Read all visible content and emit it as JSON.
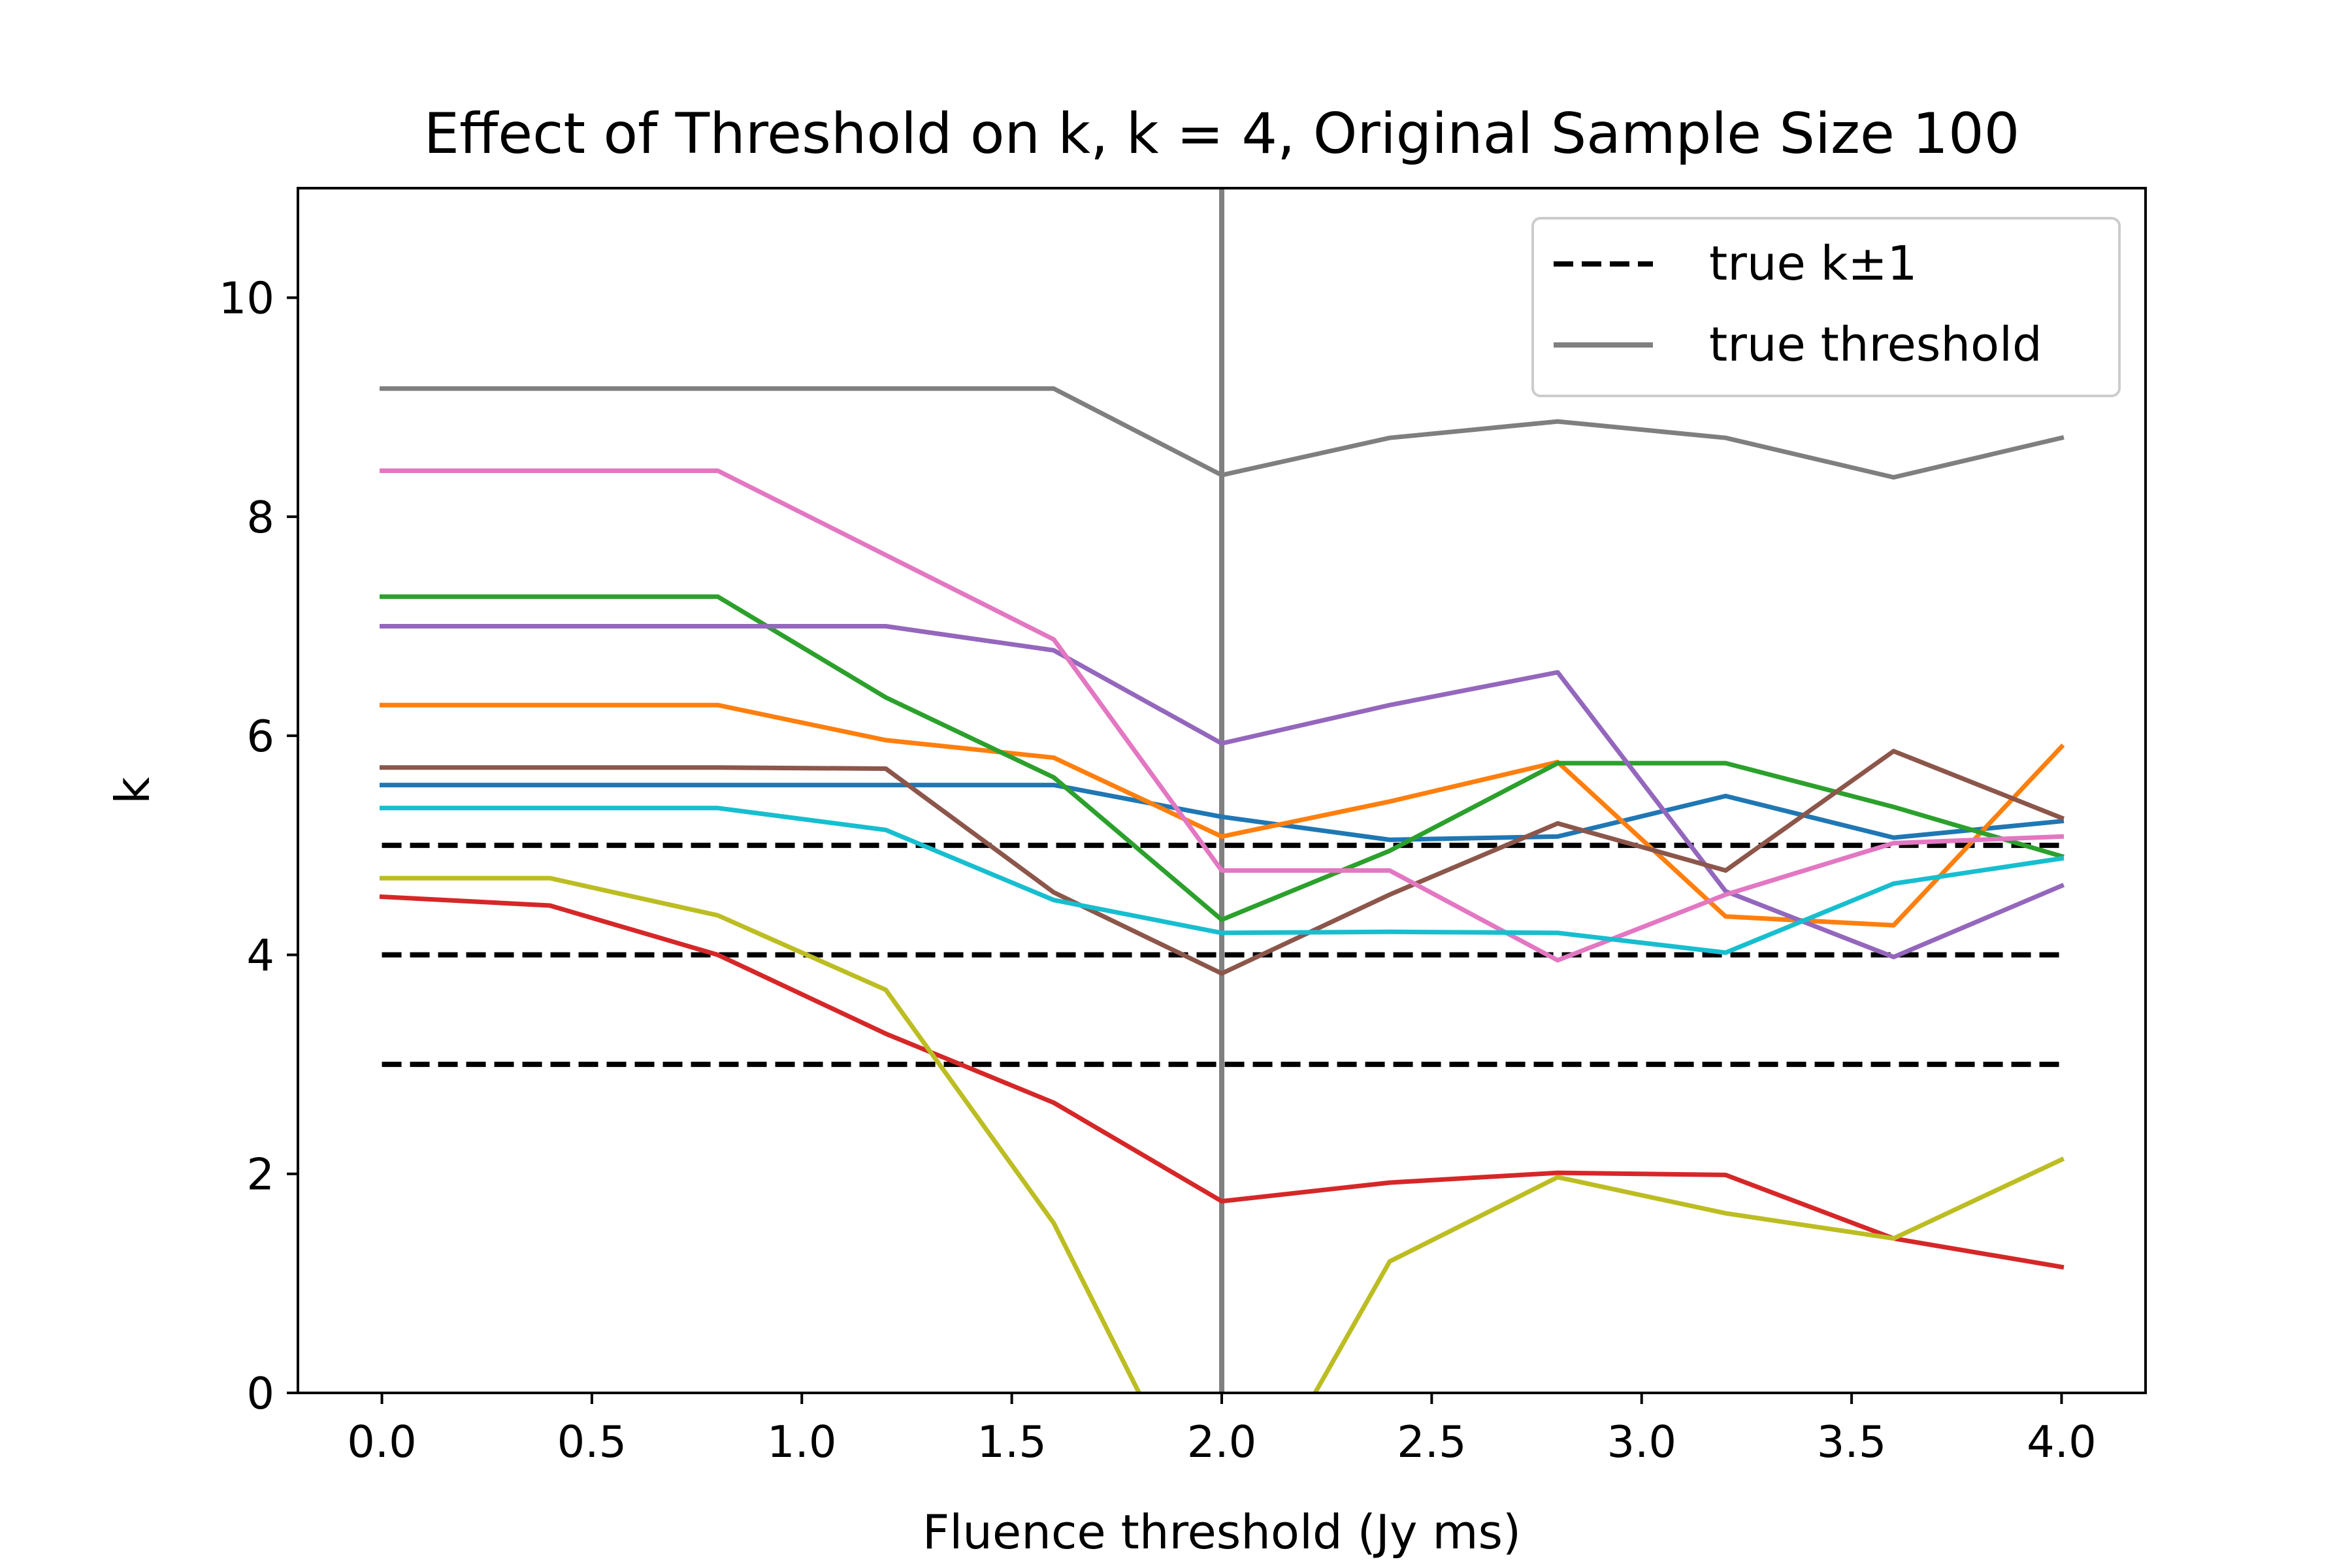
{
  "chart_data": {
    "type": "line",
    "title": "Effect of Threshold on k, k = 4, Original Sample Size 100",
    "xlabel": "Fluence threshold (Jy ms)",
    "ylabel": "k",
    "xlim": [
      -0.2,
      4.2
    ],
    "ylim": [
      0,
      11
    ],
    "xticks": [
      0.0,
      0.5,
      1.0,
      1.5,
      2.0,
      2.5,
      3.0,
      3.5,
      4.0
    ],
    "xtick_labels": [
      "0.0",
      "0.5",
      "1.0",
      "1.5",
      "2.0",
      "2.5",
      "3.0",
      "3.5",
      "4.0"
    ],
    "yticks": [
      0,
      2,
      4,
      6,
      8,
      10
    ],
    "ytick_labels": [
      "0",
      "2",
      "4",
      "6",
      "8",
      "10"
    ],
    "grid": false,
    "legend_position": "top-right",
    "x": [
      0.0,
      0.4,
      0.8,
      1.2,
      1.6,
      2.0,
      2.4,
      2.8,
      3.2,
      3.6,
      4.0
    ],
    "series": [
      {
        "color": "#1f77b4",
        "values": [
          5.55,
          5.55,
          5.55,
          5.55,
          5.55,
          5.26,
          5.05,
          5.08,
          5.45,
          5.07,
          5.22
        ]
      },
      {
        "color": "#ff7f0e",
        "values": [
          6.28,
          6.28,
          6.28,
          5.96,
          5.8,
          5.08,
          5.4,
          5.76,
          4.35,
          4.27,
          5.9
        ]
      },
      {
        "color": "#2ca02c",
        "values": [
          7.27,
          7.27,
          7.27,
          6.35,
          5.62,
          4.32,
          4.95,
          5.75,
          5.75,
          5.35,
          4.9
        ]
      },
      {
        "color": "#d62728",
        "values": [
          4.53,
          4.45,
          4.0,
          3.28,
          2.65,
          1.75,
          1.92,
          2.01,
          1.99,
          1.41,
          1.15
        ]
      },
      {
        "color": "#9467bd",
        "values": [
          7.0,
          7.0,
          7.0,
          7.0,
          6.78,
          5.93,
          6.28,
          6.58,
          4.58,
          3.98,
          4.63
        ]
      },
      {
        "color": "#8c564b",
        "values": [
          5.71,
          5.71,
          5.71,
          5.7,
          4.57,
          3.83,
          4.55,
          5.2,
          4.77,
          5.86,
          5.25
        ]
      },
      {
        "color": "#e377c2",
        "values": [
          8.42,
          8.42,
          8.42,
          7.65,
          6.88,
          4.77,
          4.77,
          3.95,
          4.55,
          5.02,
          5.08
        ]
      },
      {
        "color": "#7f7f7f",
        "values": [
          9.17,
          9.17,
          9.17,
          9.17,
          9.17,
          8.38,
          8.72,
          8.87,
          8.72,
          8.36,
          8.72
        ]
      },
      {
        "color": "#bcbd22",
        "values": [
          4.7,
          4.7,
          4.36,
          3.68,
          1.55,
          -1.5,
          1.2,
          1.97,
          1.64,
          1.41,
          2.13
        ]
      },
      {
        "color": "#17becf",
        "values": [
          5.34,
          5.34,
          5.34,
          5.14,
          4.5,
          4.2,
          4.21,
          4.2,
          4.02,
          4.65,
          4.88
        ]
      }
    ],
    "reference_lines": {
      "horizontal": {
        "name": "true k±1",
        "values": [
          3,
          4,
          5
        ],
        "color": "#000000",
        "style": "dashed"
      },
      "vertical": {
        "name": "true threshold",
        "value": 2.0,
        "color": "#808080",
        "style": "solid"
      }
    }
  }
}
